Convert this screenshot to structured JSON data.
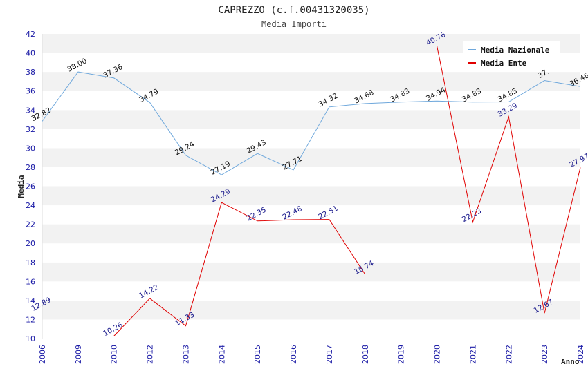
{
  "chart_data": {
    "type": "line",
    "title": "CAPREZZO (c.f.00431320035)",
    "subtitle": "Media Importi",
    "xlabel": "Anno",
    "ylabel": "Media",
    "categories": [
      "2006",
      "2009",
      "2010",
      "2012",
      "2013",
      "2014",
      "2015",
      "2016",
      "2017",
      "2018",
      "2019",
      "2020",
      "2021",
      "2022",
      "2023",
      "2024"
    ],
    "ylim": [
      10,
      42
    ],
    "yticks": [
      10,
      12,
      14,
      16,
      18,
      20,
      22,
      24,
      26,
      28,
      30,
      32,
      34,
      36,
      38,
      40,
      42
    ],
    "grid": "horizontal alternating bands",
    "legend_position": "top-right",
    "series": [
      {
        "name": "Media Nazionale",
        "color": "#6fa8dc",
        "values": [
          32.82,
          38.0,
          37.36,
          34.79,
          29.24,
          27.19,
          29.43,
          27.71,
          34.32,
          34.68,
          34.83,
          34.94,
          34.83,
          34.85,
          37.1,
          36.46
        ],
        "labels": [
          "32.82",
          "38.00",
          "37.36",
          "34.79",
          "29.24",
          "27.19",
          "29.43",
          "27.71",
          "34.32",
          "34.68",
          "34.83",
          "34.94",
          "34.83",
          "34.85",
          "37.",
          "36.46"
        ]
      },
      {
        "name": "Media Ente",
        "color": "#e00000",
        "values": [
          12.89,
          null,
          10.26,
          14.22,
          11.33,
          24.29,
          22.35,
          22.48,
          22.51,
          16.74,
          null,
          40.76,
          22.23,
          33.29,
          12.67,
          27.97
        ],
        "labels": [
          "12.89",
          "",
          "10.26",
          "14.22",
          "11.33",
          "24.29",
          "22.35",
          "22.48",
          "22.51",
          "16.74",
          "",
          "40.76",
          "22.23",
          "33.29",
          "12.67",
          "27.97"
        ]
      }
    ]
  }
}
